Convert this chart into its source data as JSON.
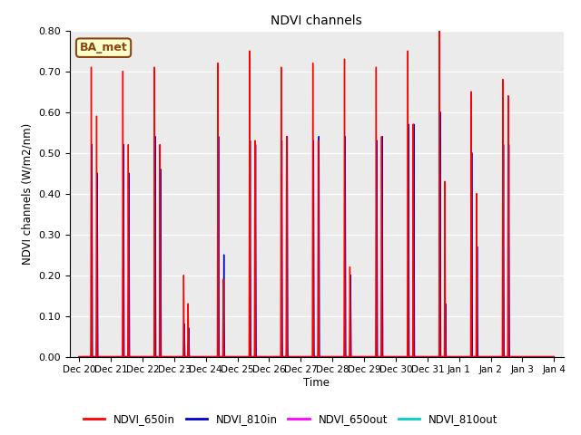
{
  "title": "NDVI channels",
  "ylabel": "NDVI channels (W/m2/nm)",
  "xlabel": "Time",
  "ylim": [
    0.0,
    0.8
  ],
  "background_color": "#e8e8e8",
  "plot_bg": "#ebebeb",
  "annotation_text": "BA_met",
  "annotation_bg": "#ffffcc",
  "annotation_border": "#8B4513",
  "legend_entries": [
    "NDVI_650in",
    "NDVI_810in",
    "NDVI_650out",
    "NDVI_810out"
  ],
  "legend_colors": [
    "#ff0000",
    "#0000cc",
    "#ff00ff",
    "#00cccc"
  ],
  "series": {
    "NDVI_650in": {
      "color": "#ff0000",
      "lw": 1.0,
      "spikes": [
        [
          0.38,
          0.71
        ],
        [
          0.55,
          0.59
        ],
        [
          1.38,
          0.7
        ],
        [
          1.55,
          0.52
        ],
        [
          2.38,
          0.71
        ],
        [
          2.55,
          0.52
        ],
        [
          3.3,
          0.2
        ],
        [
          3.44,
          0.13
        ],
        [
          4.38,
          0.72
        ],
        [
          4.55,
          0.19
        ],
        [
          5.38,
          0.75
        ],
        [
          5.55,
          0.53
        ],
        [
          6.38,
          0.71
        ],
        [
          6.55,
          0.54
        ],
        [
          7.38,
          0.72
        ],
        [
          7.55,
          0.53
        ],
        [
          8.38,
          0.73
        ],
        [
          8.55,
          0.22
        ],
        [
          9.38,
          0.71
        ],
        [
          9.55,
          0.54
        ],
        [
          10.38,
          0.75
        ],
        [
          10.55,
          0.57
        ],
        [
          11.38,
          0.8
        ],
        [
          11.55,
          0.43
        ],
        [
          12.38,
          0.65
        ],
        [
          12.55,
          0.4
        ],
        [
          13.38,
          0.68
        ],
        [
          13.55,
          0.64
        ]
      ]
    },
    "NDVI_810in": {
      "color": "#0000cc",
      "lw": 1.0,
      "spikes": [
        [
          0.4,
          0.52
        ],
        [
          0.57,
          0.45
        ],
        [
          1.4,
          0.52
        ],
        [
          1.57,
          0.45
        ],
        [
          2.4,
          0.54
        ],
        [
          2.57,
          0.46
        ],
        [
          3.32,
          0.08
        ],
        [
          3.46,
          0.07
        ],
        [
          4.4,
          0.54
        ],
        [
          4.57,
          0.25
        ],
        [
          5.4,
          0.53
        ],
        [
          5.57,
          0.52
        ],
        [
          6.4,
          0.53
        ],
        [
          6.57,
          0.54
        ],
        [
          7.4,
          0.53
        ],
        [
          7.57,
          0.54
        ],
        [
          8.4,
          0.54
        ],
        [
          8.57,
          0.2
        ],
        [
          9.4,
          0.53
        ],
        [
          9.57,
          0.54
        ],
        [
          10.4,
          0.57
        ],
        [
          10.57,
          0.57
        ],
        [
          11.4,
          0.6
        ],
        [
          11.57,
          0.13
        ],
        [
          12.4,
          0.5
        ],
        [
          12.57,
          0.27
        ],
        [
          13.4,
          0.52
        ],
        [
          13.57,
          0.52
        ]
      ]
    },
    "NDVI_650out": {
      "color": "#ff00ff",
      "lw": 1.0,
      "spikes": [
        [
          0.39,
          0.012
        ],
        [
          0.56,
          0.01
        ],
        [
          1.39,
          0.012
        ],
        [
          1.56,
          0.01
        ],
        [
          2.39,
          0.012
        ],
        [
          2.56,
          0.01
        ],
        [
          3.31,
          0.008
        ],
        [
          3.45,
          0.006
        ],
        [
          4.39,
          0.012
        ],
        [
          4.56,
          0.01
        ],
        [
          5.39,
          0.012
        ],
        [
          5.56,
          0.01
        ],
        [
          6.39,
          0.012
        ],
        [
          6.56,
          0.01
        ],
        [
          7.39,
          0.012
        ],
        [
          7.56,
          0.01
        ],
        [
          8.39,
          0.012
        ],
        [
          8.56,
          0.01
        ],
        [
          9.39,
          0.012
        ],
        [
          9.56,
          0.01
        ],
        [
          10.39,
          0.012
        ],
        [
          10.56,
          0.01
        ],
        [
          11.39,
          0.012
        ],
        [
          11.56,
          0.01
        ],
        [
          12.39,
          0.012
        ],
        [
          12.56,
          0.01
        ],
        [
          13.39,
          0.012
        ],
        [
          13.56,
          0.01
        ]
      ]
    },
    "NDVI_810out": {
      "color": "#00cccc",
      "lw": 1.0,
      "spikes": [
        [
          0.39,
          0.055
        ],
        [
          0.56,
          0.045
        ],
        [
          1.39,
          0.06
        ],
        [
          1.56,
          0.048
        ],
        [
          2.39,
          0.06
        ],
        [
          2.56,
          0.048
        ],
        [
          3.31,
          0.03
        ],
        [
          3.45,
          0.02
        ],
        [
          4.39,
          0.055
        ],
        [
          4.56,
          0.04
        ],
        [
          5.39,
          0.055
        ],
        [
          5.56,
          0.048
        ],
        [
          6.39,
          0.055
        ],
        [
          6.56,
          0.048
        ],
        [
          7.39,
          0.055
        ],
        [
          7.56,
          0.048
        ],
        [
          8.39,
          0.055
        ],
        [
          8.56,
          0.04
        ],
        [
          9.39,
          0.055
        ],
        [
          9.56,
          0.048
        ],
        [
          10.39,
          0.055
        ],
        [
          10.56,
          0.048
        ],
        [
          11.39,
          0.055
        ],
        [
          11.56,
          0.038
        ],
        [
          12.39,
          0.055
        ],
        [
          12.56,
          0.04
        ],
        [
          13.39,
          0.055
        ],
        [
          13.56,
          0.048
        ]
      ]
    }
  },
  "xtick_labels": [
    "Dec 20",
    "Dec 21",
    "Dec 22",
    "Dec 23",
    "Dec 24",
    "Dec 25",
    "Dec 26",
    "Dec 27",
    "Dec 28",
    "Dec 29",
    "Dec 30",
    "Dec 31",
    "Jan 1",
    "Jan 2",
    "Jan 3",
    "Jan 4"
  ],
  "xtick_positions": [
    0,
    1,
    2,
    3,
    4,
    5,
    6,
    7,
    8,
    9,
    10,
    11,
    12,
    13,
    14,
    15
  ],
  "ytick_labels": [
    "0.00",
    "0.10",
    "0.20",
    "0.30",
    "0.40",
    "0.50",
    "0.60",
    "0.70",
    "0.80"
  ],
  "ytick_positions": [
    0.0,
    0.1,
    0.2,
    0.3,
    0.4,
    0.5,
    0.6,
    0.7,
    0.8
  ]
}
